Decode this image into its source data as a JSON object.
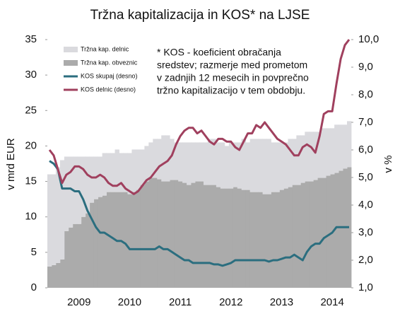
{
  "chart_data": {
    "type": "bar",
    "title": "Tržna kapitalizacija in KOS* na LJSE",
    "y_label": "v mrd EUR",
    "y2_label": "v %",
    "annotation": [
      "* KOS - koeficient obračanja",
      "sredstev; razmerje med prometom",
      "v zadnjih 12 mesecih in povprečno",
      "tržno kapitalizacijo v tem obdobju."
    ],
    "categories": [
      null,
      null,
      null,
      null,
      null,
      null,
      null,
      "2009",
      null,
      null,
      null,
      null,
      null,
      null,
      null,
      null,
      null,
      null,
      null,
      "2010",
      null,
      null,
      null,
      null,
      null,
      null,
      null,
      null,
      null,
      null,
      null,
      "2011",
      null,
      null,
      null,
      null,
      null,
      null,
      null,
      null,
      null,
      null,
      null,
      "2012",
      null,
      null,
      null,
      null,
      null,
      null,
      null,
      null,
      null,
      null,
      null,
      "2013",
      null,
      null,
      null,
      null,
      null,
      null,
      null,
      null,
      null,
      null,
      null,
      "2014",
      null,
      null,
      null,
      null
    ],
    "ylim": [
      0,
      35
    ],
    "yticks": [
      0,
      5,
      10,
      15,
      20,
      25,
      30,
      35
    ],
    "y2lim": [
      1,
      10
    ],
    "y2ticks": [
      {
        "value": 1,
        "label": "1,0"
      },
      {
        "value": 2,
        "label": "2,0"
      },
      {
        "value": 3,
        "label": "3,0"
      },
      {
        "value": 4,
        "label": "4,0"
      },
      {
        "value": 5,
        "label": "5,0"
      },
      {
        "value": 6,
        "label": "6,0"
      },
      {
        "value": 7,
        "label": "7,0"
      },
      {
        "value": 8,
        "label": "8,0"
      },
      {
        "value": 9,
        "label": "9,0"
      },
      {
        "value": 10,
        "label": "10,0"
      }
    ],
    "grid": false,
    "legend": "upper left",
    "series": [
      {
        "name": "Tržna kap. delnic",
        "type": "bar",
        "color": "#dadade",
        "values": [
          13,
          12.8,
          13.5,
          14,
          10.5,
          10,
          9.5,
          9.5,
          8.5,
          8,
          6.5,
          6,
          5.7,
          6,
          5.5,
          5.5,
          6,
          5.5,
          5.5,
          5.8,
          6,
          5.7,
          5,
          5,
          5,
          5.5,
          5.7,
          6.5,
          6.5,
          5.8,
          5.3,
          5.5,
          5.7,
          6,
          5.7,
          5.5,
          5.5,
          6,
          6.5,
          6.5,
          6.3,
          6.5,
          6,
          6.5,
          6.3,
          6.5,
          7.2,
          6.7,
          7.5,
          7.5,
          7.5,
          7.8,
          7.8,
          7,
          7,
          6.7,
          6.5,
          6.8,
          6.5,
          7,
          6.7,
          7,
          7,
          6.8,
          6.5,
          7,
          6.7,
          6.5,
          6.8,
          6.5,
          6.2,
          6.5
        ]
      },
      {
        "name": "Tržna kap. obveznic",
        "type": "bar",
        "color": "#ababab",
        "values": [
          3,
          3.2,
          3.5,
          4,
          8,
          8.5,
          9,
          9,
          10,
          10.5,
          12,
          12.5,
          12.8,
          13,
          13.5,
          13.5,
          13.5,
          13.5,
          13.5,
          13.2,
          13.5,
          13.8,
          14.5,
          15,
          15.5,
          15.5,
          15.3,
          15,
          15,
          15.2,
          15.2,
          15,
          14.8,
          14.5,
          14.8,
          15,
          15,
          14.5,
          14.5,
          14.5,
          14.2,
          14,
          14,
          14,
          14.2,
          14,
          13.8,
          13.8,
          13.5,
          13.5,
          13.5,
          13.2,
          13.2,
          13.5,
          13.5,
          13.8,
          14,
          14.2,
          14.5,
          14.5,
          14.8,
          15,
          15,
          15.2,
          15.5,
          15.5,
          15.8,
          16,
          16.2,
          16.5,
          16.8,
          17
        ]
      },
      {
        "name": "KOS skupaj (desno)",
        "type": "line",
        "axis": "y2",
        "color": "#2b6e7f",
        "values": [
          5.6,
          5.5,
          5.3,
          4.6,
          4.6,
          4.6,
          4.5,
          4.5,
          4.2,
          3.8,
          3.5,
          3.2,
          3.0,
          3.0,
          2.9,
          2.8,
          2.7,
          2.7,
          2.6,
          2.4,
          2.4,
          2.4,
          2.4,
          2.4,
          2.4,
          2.4,
          2.5,
          2.4,
          2.4,
          2.3,
          2.2,
          2.1,
          2.0,
          2.0,
          1.9,
          1.9,
          1.9,
          1.9,
          1.9,
          1.85,
          1.85,
          1.8,
          1.85,
          1.9,
          2.0,
          2.0,
          2.0,
          2.0,
          2.0,
          2.0,
          2.0,
          2.0,
          1.95,
          2.0,
          2.0,
          2.05,
          2.1,
          2.1,
          2.2,
          2.1,
          2.0,
          2.3,
          2.5,
          2.6,
          2.6,
          2.8,
          2.9,
          3.0,
          3.2,
          3.2,
          3.2,
          3.2
        ]
      },
      {
        "name": "KOS delnic (desno)",
        "type": "line",
        "axis": "y2",
        "color": "#a0405e",
        "values": [
          6.0,
          5.8,
          5.3,
          4.8,
          5.1,
          5.2,
          5.4,
          5.4,
          5.3,
          5.1,
          5.0,
          5.0,
          5.1,
          5.0,
          4.8,
          4.7,
          4.7,
          4.8,
          4.6,
          4.5,
          4.4,
          4.5,
          4.7,
          4.9,
          5.0,
          5.2,
          5.4,
          5.5,
          5.6,
          5.8,
          6.2,
          6.5,
          6.7,
          6.8,
          6.8,
          6.6,
          6.7,
          6.5,
          6.3,
          6.2,
          6.4,
          6.4,
          6.3,
          6.3,
          6.1,
          6.0,
          6.3,
          6.6,
          6.6,
          6.9,
          6.8,
          7.0,
          6.8,
          6.6,
          6.4,
          6.3,
          6.2,
          6.0,
          5.8,
          5.8,
          6.1,
          6.2,
          6.1,
          5.9,
          6.5,
          7.3,
          7.4,
          7.4,
          8.4,
          9.3,
          9.8,
          10.0
        ]
      }
    ]
  }
}
